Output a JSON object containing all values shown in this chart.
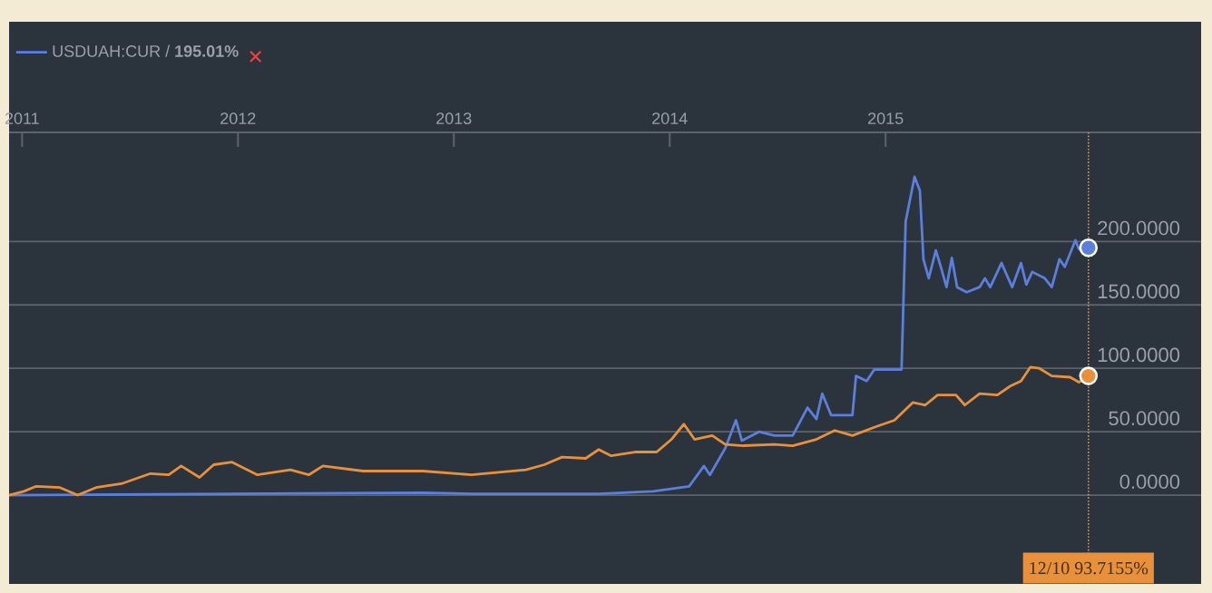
{
  "chart_data": {
    "type": "line",
    "xlim": [
      "2010-12-10",
      "2016-06-18"
    ],
    "xticks": [
      {
        "value": "2011-01-01",
        "label": "2011"
      },
      {
        "value": "2012-01-01",
        "label": "2012"
      },
      {
        "value": "2013-01-01",
        "label": "2013"
      },
      {
        "value": "2014-01-01",
        "label": "2014"
      },
      {
        "value": "2015-01-01",
        "label": "2015"
      }
    ],
    "ylim": [
      -70,
      286
    ],
    "yticks": [
      {
        "value": 0,
        "label": "0.0000"
      },
      {
        "value": 50,
        "label": "50.0000"
      },
      {
        "value": 100,
        "label": "100.0000"
      },
      {
        "value": 150,
        "label": "150.0000"
      },
      {
        "value": 200,
        "label": "200.0000"
      }
    ],
    "grid": "y",
    "legend": "top left",
    "series": [
      {
        "name": "USDUAH:CUR / **195.01%**",
        "color": "#5b7fdb",
        "x": [
          "2010-12-10",
          "2012-11-09",
          "2013-01-31",
          "2013-09-03",
          "2013-12-04",
          "2014-02-03",
          "2014-02-28",
          "2014-03-10",
          "2014-04-05",
          "2014-04-23",
          "2014-05-03",
          "2014-06-01",
          "2014-06-27",
          "2014-07-28",
          "2014-08-22",
          "2014-09-06",
          "2014-09-16",
          "2014-10-01",
          "2014-11-06",
          "2014-11-12",
          "2014-11-30",
          "2014-12-13",
          "2015-01-28",
          "2015-02-04",
          "2015-02-19",
          "2015-02-28",
          "2015-03-06",
          "2015-03-15",
          "2015-03-27",
          "2015-04-05",
          "2015-04-14",
          "2015-04-23",
          "2015-05-02",
          "2015-05-18",
          "2015-06-09",
          "2015-06-18",
          "2015-06-27",
          "2015-07-16",
          "2015-08-03",
          "2015-08-18",
          "2015-08-27",
          "2015-09-06",
          "2015-09-27",
          "2015-10-09",
          "2015-10-22",
          "2015-10-31",
          "2015-11-18",
          "2015-11-24",
          "2015-12-10"
        ],
        "values": [
          0,
          2,
          1,
          1,
          3,
          7,
          23,
          16,
          37,
          59,
          43,
          50,
          47,
          47,
          69,
          60,
          80,
          63,
          63,
          94,
          90,
          99,
          99,
          216,
          251,
          240,
          186,
          171,
          193,
          179,
          164,
          187,
          164,
          160,
          164,
          171,
          164,
          183,
          164,
          183,
          166,
          176,
          171,
          164,
          186,
          180,
          201,
          194,
          195
        ]
      },
      {
        "color": "#e8913a",
        "x": [
          "2010-12-10",
          "2011-01-04",
          "2011-01-25",
          "2011-03-06",
          "2011-04-05",
          "2011-05-06",
          "2011-06-18",
          "2011-08-06",
          "2011-09-06",
          "2011-09-27",
          "2011-10-28",
          "2011-11-21",
          "2011-12-22",
          "2012-02-03",
          "2012-03-30",
          "2012-04-30",
          "2012-05-24",
          "2012-07-31",
          "2012-11-09",
          "2013-01-31",
          "2013-05-03",
          "2013-06-03",
          "2013-07-03",
          "2013-08-12",
          "2013-09-03",
          "2013-09-24",
          "2013-11-03",
          "2013-12-10",
          "2014-01-04",
          "2014-01-25",
          "2014-02-12",
          "2014-03-14",
          "2014-04-05",
          "2014-05-06",
          "2014-06-27",
          "2014-07-28",
          "2014-09-06",
          "2014-10-07",
          "2014-11-06",
          "2014-12-16",
          "2015-01-16",
          "2015-02-16",
          "2015-03-09",
          "2015-03-30",
          "2015-04-30",
          "2015-05-15",
          "2015-06-09",
          "2015-07-09",
          "2015-07-31",
          "2015-08-18",
          "2015-09-03",
          "2015-09-18",
          "2015-10-09",
          "2015-11-09",
          "2015-11-24",
          "2015-12-10"
        ],
        "values": [
          0,
          3,
          7,
          6,
          0,
          6,
          9,
          17,
          16,
          23,
          14,
          24,
          26,
          16,
          20,
          16,
          23,
          19,
          19,
          16,
          20,
          24,
          30,
          29,
          36,
          31,
          34,
          34,
          44,
          56,
          44,
          47,
          40,
          39,
          40,
          39,
          44,
          51,
          47,
          54,
          59,
          73,
          71,
          79,
          79,
          71,
          80,
          79,
          86,
          90,
          101,
          100,
          94,
          93,
          89,
          94
        ]
      },
      {
        "type": "scatter",
        "color": "#5b7fdb",
        "x": [
          "2015-12-10"
        ],
        "values": [
          195
        ]
      },
      {
        "type": "scatter",
        "color": "#e8913a",
        "x": [
          "2015-12-10"
        ],
        "values": [
          94
        ]
      }
    ],
    "ref_lines": [
      {
        "axis": "x",
        "value": "2015-12-10",
        "label": "12/10 93.7155%",
        "color": "#e8913a",
        "line_style": "dotted"
      }
    ]
  }
}
